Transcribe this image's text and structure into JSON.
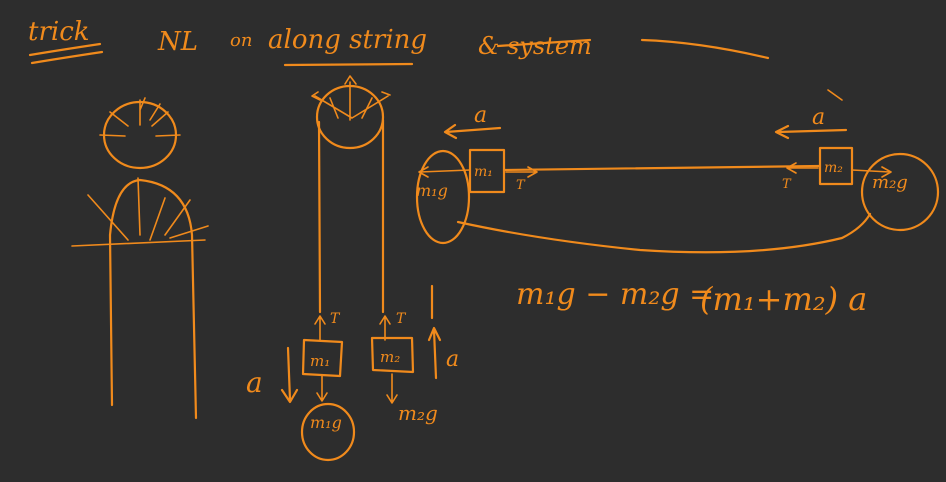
{
  "canvas": {
    "background": "#2d2d2d",
    "ink_color": "#f08a1c"
  },
  "heading": {
    "trick": "trick",
    "nl": "NL",
    "on": "on",
    "along_string": "along string",
    "system": "& system"
  },
  "pulley_setup": {
    "tension_left": "T",
    "tension_right": "T",
    "mass_left": "m₁",
    "mass_right": "m₂",
    "weight_left": "m₁g",
    "weight_right": "m₂g",
    "accel_left": "a",
    "accel_right": "a"
  },
  "straightened_setup": {
    "accel_left": "a",
    "accel_right": "a",
    "mass_left": "m₁",
    "mass_right": "m₂",
    "tension_left": "T",
    "tension_right": "T",
    "weight_left": "m₁g",
    "weight_right": "m₂g"
  },
  "equation": {
    "lhs": "m₁g − m₂g =",
    "rhs": "(m₁+m₂) a"
  }
}
